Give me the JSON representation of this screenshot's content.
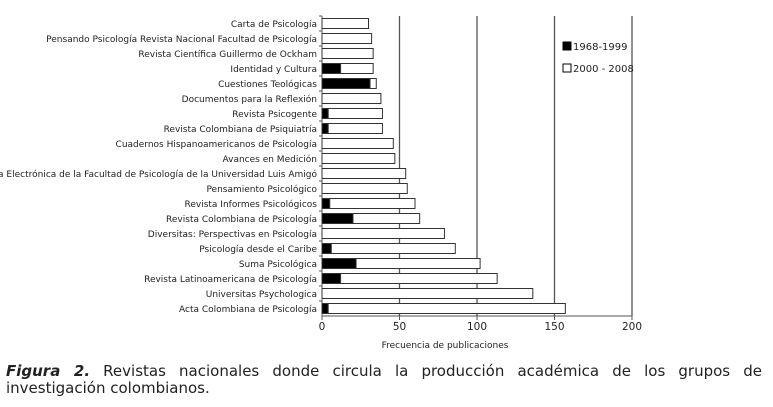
{
  "chart_data": {
    "type": "bar",
    "orientation": "horizontal",
    "stacked": true,
    "categories": [
      "Carta de Psicología",
      "Pensando Psicología Revista Nacional Facultad de Psicología",
      "Revista Científica Guillermo de Ockham",
      "Identidad y Cultura",
      "Cuestiones Teológicas",
      "Documentos para la Reflexión",
      "Revista Psicogente",
      "Revista Colombiana de Psiquiatría",
      "Cuadernos Hispanoamericanos de Psicología",
      "Avances en Medición",
      "Revista Electrónica de la Facultad de Psicología de la Universidad Luis Amigó",
      "Pensamiento Psicológico",
      "Revista Informes Psicológicos",
      "Revista Colombiana de Psicología",
      "Diversitas: Perspectivas en Psicología",
      "Psicología desde el Caribe",
      "Suma Psicológica",
      "Revista Latinoamericana de Psicología",
      "Universitas Psychologica",
      "Acta Colombiana de Psicología"
    ],
    "series": [
      {
        "name": "1968-1999",
        "color": "#000000",
        "values": [
          0,
          0,
          0,
          12,
          31,
          0,
          4,
          4,
          0,
          0,
          0,
          0,
          5,
          20,
          0,
          6,
          22,
          12,
          0,
          4
        ]
      },
      {
        "name": "2000 - 2008",
        "color": "#ffffff",
        "values": [
          30,
          32,
          33,
          21,
          4,
          38,
          35,
          35,
          46,
          47,
          54,
          55,
          55,
          43,
          79,
          80,
          80,
          101,
          136,
          153
        ]
      }
    ],
    "xlabel": "Frecuencia de publicaciones",
    "ylabel": "",
    "xlim": [
      0,
      200
    ],
    "xticks": [
      "0",
      "50",
      "100",
      "150",
      "200"
    ],
    "grid": "vertical major lines",
    "legend": "right"
  },
  "caption": {
    "label": "Figura 2.",
    "text": " Revistas nacionales donde circula la producción académica de los grupos de investigación colombianos."
  }
}
